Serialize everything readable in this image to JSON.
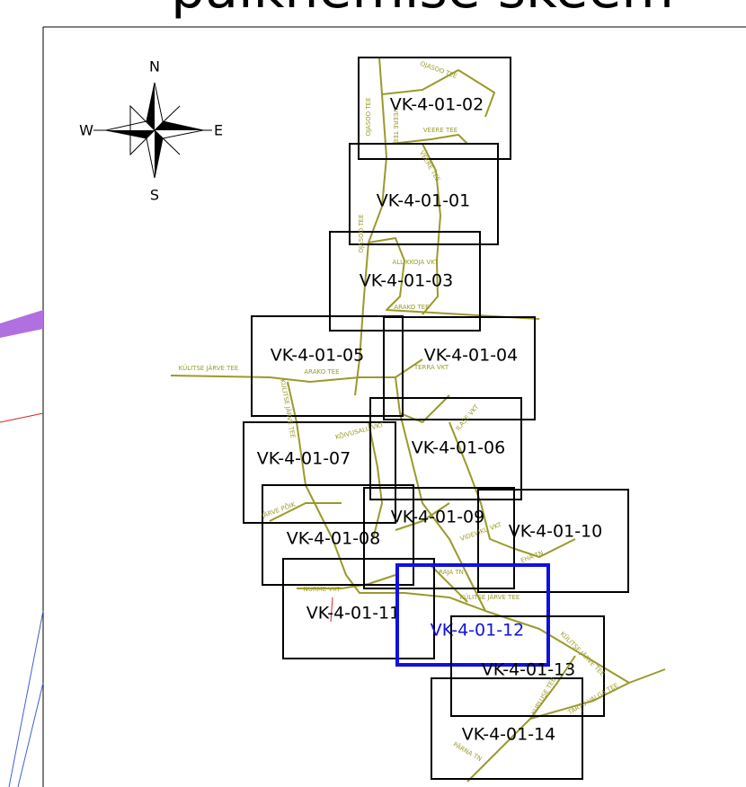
{
  "title": "paiknemise skeem",
  "compass": {
    "n": "N",
    "e": "E",
    "s": "S",
    "w": "W"
  },
  "sheets": [
    {
      "label": "VK-4-01-02"
    },
    {
      "label": "VK-4-01-01"
    },
    {
      "label": "VK-4-01-03"
    },
    {
      "label": "VK-4-01-05"
    },
    {
      "label": "VK-4-01-04"
    },
    {
      "label": "VK-4-01-06"
    },
    {
      "label": "VK-4-01-07"
    },
    {
      "label": "VK-4-01-09"
    },
    {
      "label": "VK-4-01-08"
    },
    {
      "label": "VK-4-01-10"
    },
    {
      "label": "VK-4-01-11"
    },
    {
      "label": "VK-4-01-12"
    },
    {
      "label": "VK-4-01-13"
    },
    {
      "label": "VK-4-01-14"
    }
  ],
  "streets": [
    "OJASOO TEE",
    "OJASOO TEE",
    "VEERE TEE",
    "VEERE TEE",
    "VEERE TEE",
    "OJASOO TEE",
    "ALLIKKOJA VKT",
    "ARAKO TEE",
    "ARAKO TEE",
    "KÜLITSE JÄRVE TEE",
    "TERRA VKT",
    "KÜLITSE JÄRVE TEE",
    "KÕIVUSALU VKT",
    "ILASE VKT",
    "JÄRVE PÕIK",
    "NURME VKT",
    "RAJA TN",
    "KÜLITSE JÄRVE TEE",
    "EHA TN",
    "VIDEVIKU VKT",
    "KÜLITSE JÄRVE TEE",
    "KUPLUSE TEE",
    "TARTU-VALGA TEE",
    "PÄRNA TN"
  ]
}
